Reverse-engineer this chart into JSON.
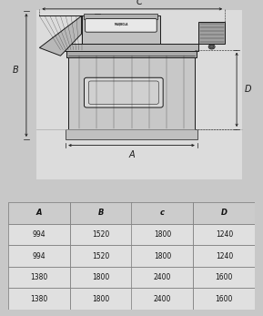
{
  "bg_color": "#c8c8c8",
  "draw_bg": "#e0e0e0",
  "table_bg": "#e8e8e8",
  "table_headers": [
    "A",
    "B",
    "c",
    "D"
  ],
  "table_rows": [
    [
      "994",
      "1520",
      "1800",
      "1240"
    ],
    [
      "994",
      "1520",
      "1800",
      "1240"
    ],
    [
      "1380",
      "1800",
      "2400",
      "1600"
    ],
    [
      "1380",
      "1800",
      "2400",
      "1600"
    ]
  ],
  "dark": "#1a1a1a",
  "mid": "#555555",
  "lw": 0.7,
  "table_fontsize": 5.5
}
